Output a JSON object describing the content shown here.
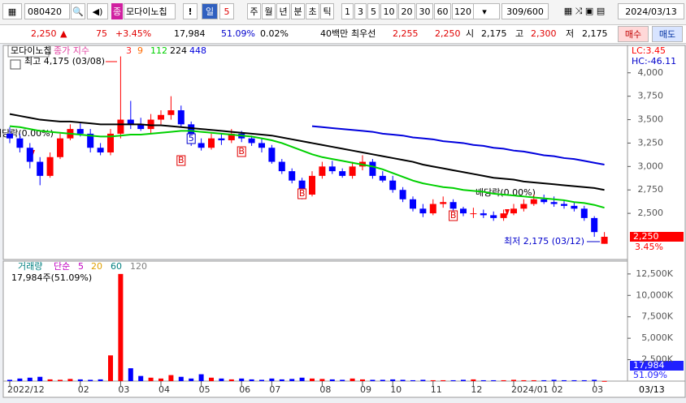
{
  "toolbar": {
    "code": "080420",
    "prefix": "종",
    "name": "모다이노칩",
    "alert": "!",
    "period_label": "일",
    "period_value": "5",
    "periods": [
      "주",
      "월",
      "년",
      "분",
      "초",
      "틱"
    ],
    "intervals": [
      "1",
      "3",
      "5",
      "10",
      "20",
      "30",
      "60",
      "120"
    ],
    "count": "309/600",
    "date": "2024/03/13"
  },
  "quote": {
    "price": "2,250",
    "arrow": "▲",
    "change": "75",
    "change_pct": "+3.45%",
    "volume": "17,984",
    "volume_ratio": "51.09%",
    "turnover": "0.02%",
    "amount": "40백만",
    "best_label": "최우선",
    "ask": "2,255",
    "bid": "2,250",
    "open_label": "시",
    "open": "2,175",
    "high_label": "고",
    "high": "2,300",
    "low_label": "저",
    "low": "2,175",
    "buy": "매수",
    "sell": "매도"
  },
  "chart_data": [
    {
      "type": "candlestick",
      "legend_title": "모다이노칩",
      "legend_prefix": "종가 지수",
      "short_ma": [
        {
          "name": "3",
          "color": "#ff2020"
        },
        {
          "name": "9",
          "color": "#ff6a00"
        }
      ],
      "up_color": "#ff0000",
      "down_color": "#0000ff",
      "open": [
        3350,
        3300,
        3200,
        3050,
        2900,
        3100,
        3300,
        3400,
        3350,
        3200,
        3150,
        3350,
        3500,
        3450,
        3400,
        3500,
        3550,
        3600,
        3450,
        3250,
        3200,
        3300,
        3280,
        3350,
        3300,
        3250,
        3200,
        3050,
        2950,
        2850,
        2700,
        2900,
        3000,
        2950,
        2900,
        3000,
        3050,
        2900,
        2850,
        2750,
        2650,
        2550,
        2500,
        2600,
        2620,
        2550,
        2500,
        2500,
        2480,
        2450,
        2500,
        2550,
        2600,
        2650,
        2620,
        2600,
        2580,
        2550,
        2450,
        2175
      ],
      "high": [
        3420,
        3350,
        3250,
        3100,
        3150,
        3350,
        3450,
        3460,
        3400,
        3250,
        3400,
        4175,
        3700,
        3520,
        3560,
        3600,
        3750,
        3650,
        3480,
        3300,
        3350,
        3350,
        3400,
        3380,
        3330,
        3300,
        3230,
        3080,
        2980,
        2880,
        2950,
        3050,
        3060,
        2980,
        3050,
        3120,
        3080,
        2950,
        2900,
        2780,
        2680,
        2600,
        2650,
        2680,
        2650,
        2570,
        2560,
        2540,
        2520,
        2540,
        2600,
        2650,
        2700,
        2700,
        2680,
        2640,
        2620,
        2580,
        2470,
        2300
      ],
      "low": [
        3250,
        3150,
        2980,
        2800,
        2880,
        3080,
        3280,
        3320,
        3150,
        3120,
        3120,
        3300,
        3400,
        3380,
        3350,
        3450,
        3500,
        3420,
        3220,
        3170,
        3180,
        3230,
        3250,
        3260,
        3220,
        3150,
        3030,
        2920,
        2820,
        2650,
        2680,
        2870,
        2920,
        2880,
        2870,
        2960,
        2870,
        2830,
        2720,
        2620,
        2520,
        2460,
        2480,
        2560,
        2530,
        2470,
        2450,
        2450,
        2420,
        2420,
        2480,
        2520,
        2580,
        2600,
        2570,
        2550,
        2520,
        2420,
        2250,
        2175
      ],
      "close": [
        3300,
        3200,
        3050,
        2900,
        3100,
        3300,
        3400,
        3350,
        3200,
        3150,
        3350,
        3500,
        3450,
        3400,
        3500,
        3550,
        3600,
        3450,
        3250,
        3200,
        3300,
        3280,
        3350,
        3300,
        3250,
        3200,
        3050,
        2950,
        2850,
        2700,
        2900,
        3000,
        2950,
        2900,
        3000,
        3050,
        2900,
        2850,
        2750,
        2650,
        2550,
        2500,
        2600,
        2620,
        2550,
        2500,
        2500,
        2480,
        2450,
        2500,
        2550,
        2600,
        2650,
        2620,
        2600,
        2580,
        2550,
        2450,
        2300,
        2250
      ],
      "series": [
        {
          "name": "112",
          "color": "#00d000",
          "values": [
            3430,
            3420,
            3400,
            3380,
            3370,
            3360,
            3350,
            3340,
            3330,
            3320,
            3320,
            3330,
            3340,
            3340,
            3350,
            3360,
            3370,
            3380,
            3380,
            3370,
            3360,
            3350,
            3340,
            3330,
            3320,
            3300,
            3280,
            3250,
            3210,
            3170,
            3130,
            3100,
            3080,
            3060,
            3040,
            3020,
            3000,
            2970,
            2930,
            2890,
            2850,
            2820,
            2800,
            2780,
            2770,
            2750,
            2740,
            2730,
            2710,
            2700,
            2690,
            2680,
            2670,
            2660,
            2650,
            2640,
            2620,
            2610,
            2590,
            2560
          ]
        },
        {
          "name": "224",
          "color": "#000000",
          "values": [
            3560,
            3540,
            3520,
            3500,
            3490,
            3480,
            3480,
            3470,
            3460,
            3450,
            3450,
            3450,
            3450,
            3450,
            3440,
            3440,
            3430,
            3420,
            3410,
            3400,
            3390,
            3380,
            3370,
            3360,
            3350,
            3340,
            3330,
            3310,
            3290,
            3270,
            3250,
            3230,
            3210,
            3190,
            3170,
            3150,
            3130,
            3110,
            3090,
            3070,
            3050,
            3020,
            3000,
            2980,
            2960,
            2940,
            2920,
            2900,
            2880,
            2870,
            2860,
            2840,
            2830,
            2820,
            2810,
            2800,
            2790,
            2780,
            2770,
            2750
          ]
        },
        {
          "name": "448",
          "color": "#0000dd",
          "values": [
            null,
            null,
            null,
            null,
            null,
            null,
            null,
            null,
            null,
            null,
            null,
            null,
            null,
            null,
            null,
            null,
            null,
            null,
            null,
            null,
            null,
            null,
            null,
            null,
            null,
            null,
            null,
            null,
            null,
            null,
            3430,
            3420,
            3410,
            3400,
            3390,
            3380,
            3370,
            3350,
            3340,
            3330,
            3310,
            3300,
            3290,
            3270,
            3260,
            3250,
            3230,
            3220,
            3200,
            3190,
            3170,
            3160,
            3140,
            3120,
            3110,
            3090,
            3080,
            3060,
            3040,
            3020
          ]
        }
      ],
      "ylim": [
        2025,
        4275
      ],
      "yticks": [
        {
          "value": 2500,
          "label": "2,500"
        },
        {
          "value": 2750,
          "label": "2,750"
        },
        {
          "value": 3000,
          "label": "3,000"
        },
        {
          "value": 3250,
          "label": "3,250"
        },
        {
          "value": 3500,
          "label": "3,500"
        },
        {
          "value": 3750,
          "label": "3,750"
        },
        {
          "value": 4000,
          "label": "4,000"
        }
      ],
      "last": {
        "value": 2250,
        "label": "2,250"
      },
      "last_pct": "3.45%",
      "lc": "LC:3.45",
      "hc": "HC:-46.11",
      "high_note": "최고 4,175 (03/08)",
      "low_note": "최저 2,175 (03/12)",
      "dividend_note": "배당락(0.00%)",
      "signal": "B",
      "signal_5": "5"
    },
    {
      "type": "bar",
      "legend_title": "거래량",
      "ma_label": "단순",
      "ma": [
        {
          "name": "5",
          "color": "#c000c0"
        },
        {
          "name": "20",
          "color": "#e0a000"
        },
        {
          "name": "60",
          "color": "#008080"
        },
        {
          "name": "120",
          "color": "#808080"
        }
      ],
      "current": "17,984주(51.09%)",
      "last_volume": "17,984",
      "last_ratio": "51.09%",
      "values": [
        150,
        300,
        400,
        500,
        200,
        150,
        250,
        200,
        150,
        200,
        3000,
        12500,
        1500,
        600,
        400,
        300,
        700,
        500,
        300,
        800,
        400,
        300,
        200,
        300,
        200,
        150,
        300,
        200,
        250,
        400,
        300,
        250,
        200,
        150,
        300,
        200,
        150,
        150,
        200,
        150,
        100,
        150,
        100,
        100,
        100,
        150,
        200,
        100,
        100,
        100,
        150,
        100,
        100,
        100,
        150,
        100,
        100,
        100,
        150,
        17.984
      ],
      "ylim": [
        0,
        14000
      ],
      "yticks": [
        {
          "value": 2500,
          "label": "2,500K"
        },
        {
          "value": 5000,
          "label": "5,000K"
        },
        {
          "value": 7500,
          "label": "7,500K"
        },
        {
          "value": 10000,
          "label": "10,000K"
        },
        {
          "value": 12500,
          "label": "12,500K"
        }
      ],
      "xticks": [
        {
          "value": 0,
          "label": "2022/12"
        },
        {
          "value": 7,
          "label": "02"
        },
        {
          "value": 11,
          "label": "03"
        },
        {
          "value": 15,
          "label": "04"
        },
        {
          "value": 19,
          "label": "05"
        },
        {
          "value": 23,
          "label": "06"
        },
        {
          "value": 26,
          "label": "07"
        },
        {
          "value": 31,
          "label": "08"
        },
        {
          "value": 35,
          "label": "09"
        },
        {
          "value": 38,
          "label": "10"
        },
        {
          "value": 42,
          "label": "11"
        },
        {
          "value": 46,
          "label": "12"
        },
        {
          "value": 50,
          "label": "2024/01"
        },
        {
          "value": 54,
          "label": "02"
        },
        {
          "value": 58,
          "label": "03"
        }
      ],
      "last_date": "03/13"
    }
  ]
}
